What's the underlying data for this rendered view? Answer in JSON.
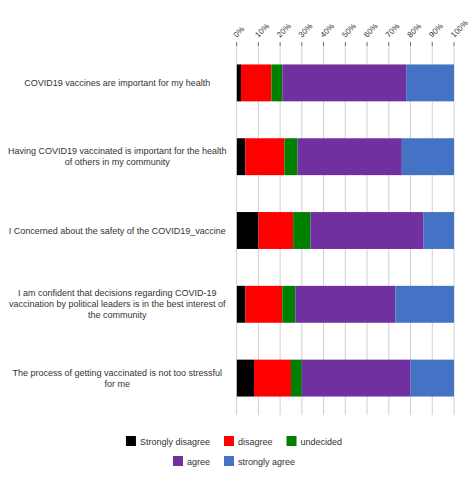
{
  "chart_data": {
    "type": "bar",
    "orientation": "horizontal",
    "stacked": true,
    "categories": [
      "COVID19 vaccines are important for my health",
      "Having COVID19 vaccinated is important for the health\nof others in my community",
      "I Concerned about the safety of the COVID19_vaccine",
      "I am confident  that decisions regarding COVID-19\nvaccination by political leaders is in the best interest of\nthe community",
      "The process of getting vaccinated is not too stressful\nfor me"
    ],
    "series": [
      {
        "name": "Strongly disagree",
        "color": "#000000",
        "values": [
          2,
          4,
          10,
          4,
          8
        ]
      },
      {
        "name": "disagree",
        "color": "#ff0000",
        "values": [
          14,
          18,
          16,
          17,
          17
        ]
      },
      {
        "name": "undecided",
        "color": "#008000",
        "values": [
          5,
          6,
          8,
          6,
          5
        ]
      },
      {
        "name": "agree",
        "color": "#7030a0",
        "values": [
          57,
          48,
          52,
          46,
          50
        ]
      },
      {
        "name": "strongly agree",
        "color": "#4472c4",
        "values": [
          22,
          24,
          14,
          27,
          20
        ]
      }
    ],
    "xlim": [
      0,
      100
    ],
    "xticks": [
      {
        "value": 0,
        "label": "0%"
      },
      {
        "value": 10,
        "label": "10%"
      },
      {
        "value": 20,
        "label": "20%"
      },
      {
        "value": 30,
        "label": "30%"
      },
      {
        "value": 40,
        "label": "40%"
      },
      {
        "value": 50,
        "label": "50%"
      },
      {
        "value": 60,
        "label": "60%"
      },
      {
        "value": 70,
        "label": "70%"
      },
      {
        "value": 80,
        "label": "80%"
      },
      {
        "value": 90,
        "label": "90%"
      },
      {
        "value": 100,
        "label": "100%"
      }
    ],
    "grid": true,
    "legend": "bottom"
  }
}
